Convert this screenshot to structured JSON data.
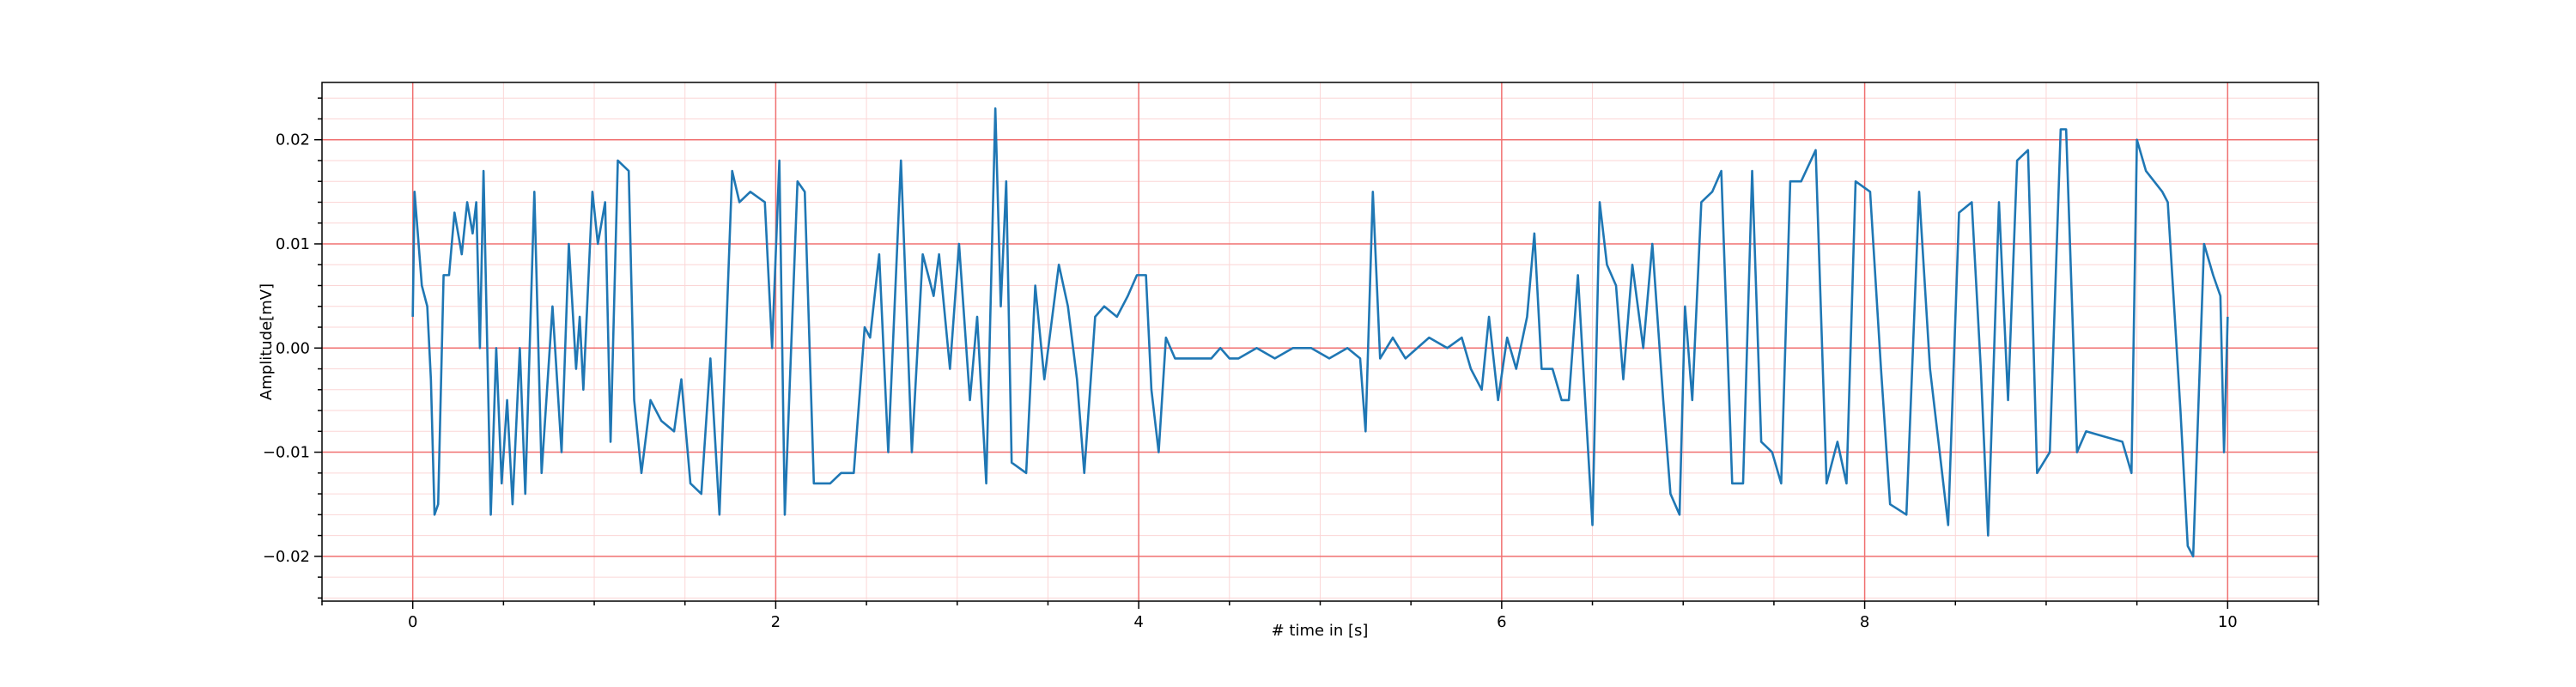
{
  "chart_data": {
    "type": "line",
    "xlabel": "# time in [s]",
    "ylabel": "Amplitude[mV]",
    "x": [
      0,
      0.01,
      0.05,
      0.08,
      0.1,
      0.12,
      0.14,
      0.17,
      0.2,
      0.23,
      0.27,
      0.3,
      0.33,
      0.35,
      0.37,
      0.39,
      0.43,
      0.46,
      0.49,
      0.52,
      0.55,
      0.59,
      0.62,
      0.67,
      0.71,
      0.77,
      0.82,
      0.86,
      0.9,
      0.92,
      0.94,
      0.99,
      1.02,
      1.06,
      1.09,
      1.13,
      1.19,
      1.22,
      1.26,
      1.31,
      1.37,
      1.44,
      1.48,
      1.53,
      1.59,
      1.64,
      1.69,
      1.76,
      1.8,
      1.86,
      1.94,
      1.98,
      2.02,
      2.05,
      2.12,
      2.16,
      2.21,
      2.3,
      2.36,
      2.43,
      2.49,
      2.52,
      2.57,
      2.62,
      2.69,
      2.75,
      2.81,
      2.87,
      2.9,
      2.96,
      3.01,
      3.07,
      3.11,
      3.16,
      3.21,
      3.24,
      3.27,
      3.3,
      3.38,
      3.43,
      3.48,
      3.56,
      3.61,
      3.66,
      3.7,
      3.76,
      3.81,
      3.88,
      3.94,
      3.99,
      4.04,
      4.07,
      4.11,
      4.15,
      4.2,
      4.3,
      4.4,
      4.45,
      4.5,
      4.55,
      4.65,
      4.75,
      4.85,
      4.95,
      5.05,
      5.15,
      5.22,
      5.25,
      5.29,
      5.33,
      5.4,
      5.47,
      5.6,
      5.7,
      5.78,
      5.83,
      5.89,
      5.93,
      5.98,
      6.03,
      6.08,
      6.14,
      6.18,
      6.22,
      6.28,
      6.33,
      6.37,
      6.42,
      6.46,
      6.5,
      6.54,
      6.58,
      6.63,
      6.67,
      6.72,
      6.78,
      6.83,
      6.89,
      6.93,
      6.98,
      7.01,
      7.05,
      7.1,
      7.16,
      7.21,
      7.27,
      7.33,
      7.38,
      7.43,
      7.49,
      7.54,
      7.59,
      7.65,
      7.73,
      7.79,
      7.85,
      7.9,
      7.95,
      8.03,
      8.09,
      8.14,
      8.23,
      8.3,
      8.36,
      8.46,
      8.52,
      8.59,
      8.64,
      8.68,
      8.74,
      8.79,
      8.84,
      8.9,
      8.95,
      9.02,
      9.08,
      9.11,
      9.17,
      9.22,
      9.42,
      9.47,
      9.5,
      9.55,
      9.64,
      9.67,
      9.74,
      9.78,
      9.81,
      9.87,
      9.92,
      9.96,
      9.98,
      10
    ],
    "series": [
      {
        "color": "#1f77b4",
        "values": [
          0.003,
          0.015,
          0.006,
          0.004,
          -0.003,
          -0.016,
          -0.015,
          0.007,
          0.007,
          0.013,
          0.009,
          0.014,
          0.011,
          0.014,
          0,
          0.017,
          -0.016,
          0,
          -0.013,
          -0.005,
          -0.015,
          0,
          -0.014,
          0.015,
          -0.012,
          0.004,
          -0.01,
          0.01,
          -0.002,
          0.003,
          -0.004,
          0.015,
          0.01,
          0.014,
          -0.009,
          0.018,
          0.017,
          -0.005,
          -0.012,
          -0.005,
          -0.007,
          -0.008,
          -0.003,
          -0.013,
          -0.014,
          -0.001,
          -0.016,
          0.017,
          0.014,
          0.015,
          0.014,
          0,
          0.018,
          -0.016,
          0.016,
          0.015,
          -0.013,
          -0.013,
          -0.012,
          -0.012,
          0.002,
          0.001,
          0.009,
          -0.01,
          0.018,
          -0.01,
          0.009,
          0.005,
          0.009,
          -0.002,
          0.01,
          -0.005,
          0.003,
          -0.013,
          0.023,
          0.004,
          0.016,
          -0.011,
          -0.012,
          0.006,
          -0.003,
          0.008,
          0.004,
          -0.003,
          -0.012,
          0.003,
          0.004,
          0.003,
          0.005,
          0.007,
          0.007,
          -0.004,
          -0.01,
          0.001,
          -0.001,
          -0.001,
          -0.001,
          0,
          -0.001,
          -0.001,
          0,
          -0.001,
          0,
          0,
          -0.001,
          0,
          -0.001,
          -0.008,
          0.015,
          -0.001,
          0.001,
          -0.001,
          0.001,
          0,
          0.001,
          -0.002,
          -0.004,
          0.003,
          -0.005,
          0.001,
          -0.002,
          0.003,
          0.011,
          -0.002,
          -0.002,
          -0.005,
          -0.005,
          0.007,
          -0.005,
          -0.017,
          0.014,
          0.008,
          0.006,
          -0.003,
          0.008,
          0,
          0.01,
          -0.005,
          -0.014,
          -0.016,
          0.004,
          -0.005,
          0.014,
          0.015,
          0.017,
          -0.013,
          -0.013,
          0.017,
          -0.009,
          -0.01,
          -0.013,
          0.016,
          0.016,
          0.019,
          -0.013,
          -0.009,
          -0.013,
          0.016,
          0.015,
          -0.002,
          -0.015,
          -0.016,
          0.015,
          -0.002,
          -0.017,
          0.013,
          0.014,
          -0.002,
          -0.018,
          0.014,
          -0.005,
          0.018,
          0.019,
          -0.012,
          -0.01,
          0.021,
          0.021,
          -0.01,
          -0.008,
          -0.009,
          -0.012,
          0.02,
          0.017,
          0.015,
          0.014,
          -0.006,
          -0.019,
          -0.02,
          0.01,
          0.007,
          0.005,
          -0.01,
          0.003
        ]
      }
    ],
    "xlim": [
      -0.5,
      10.5
    ],
    "xticks": [
      0,
      2,
      4,
      6,
      8,
      10
    ],
    "xminorticks": [
      -0.5,
      0.5,
      1,
      1.5,
      2.5,
      3,
      3.5,
      4.5,
      5,
      5.5,
      6.5,
      7,
      7.5,
      8.5,
      9,
      9.5,
      10.5
    ],
    "ylim": [
      -0.0243,
      0.0255
    ],
    "yticks": [
      {
        "value": -0.02,
        "label": "−0.02"
      },
      {
        "value": -0.01,
        "label": "−0.01"
      },
      {
        "value": 0,
        "label": "0.00"
      },
      0.01,
      0.02
    ],
    "yminorticks": [
      -0.024,
      -0.022,
      -0.018,
      -0.016,
      -0.014,
      -0.012,
      -0.008,
      -0.006,
      -0.004,
      -0.002,
      0.002,
      0.004,
      0.006,
      0.008,
      0.012,
      0.014,
      0.016,
      0.018,
      0.022,
      0.024
    ],
    "grid": true
  }
}
